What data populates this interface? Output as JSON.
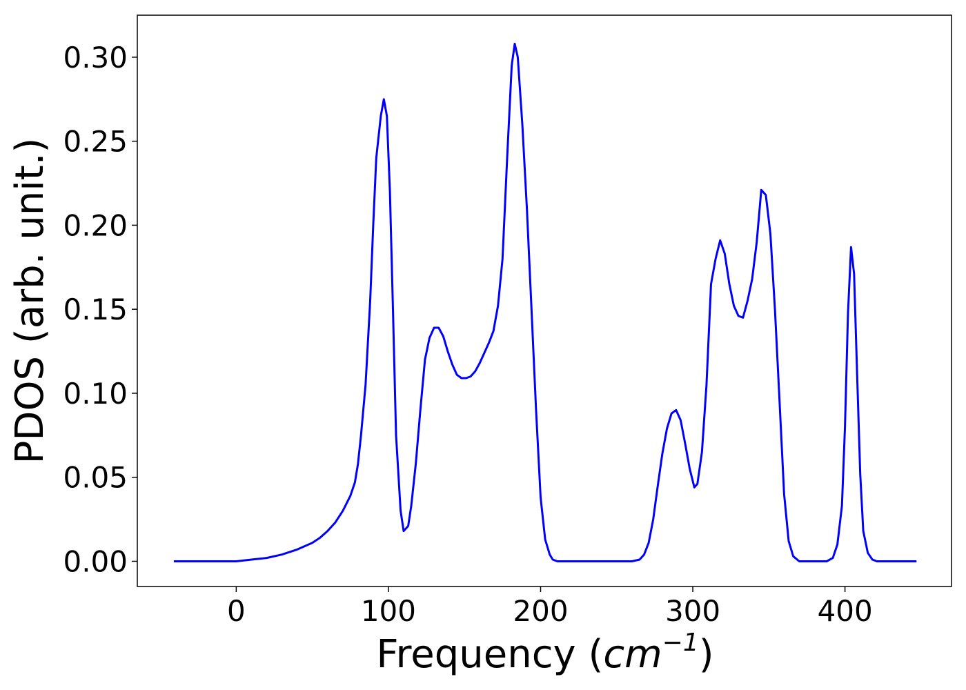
{
  "chart_data": {
    "type": "line",
    "title": "",
    "xlabel_main": "Frequency (",
    "xlabel_unit_base": "cm",
    "xlabel_unit_exp": "−1",
    "xlabel_close": ")",
    "ylabel": "PDOS (arb. unit.)",
    "xlim": [
      -65,
      470
    ],
    "ylim": [
      -0.015,
      0.325
    ],
    "xticks": [
      0,
      100,
      200,
      300,
      400
    ],
    "xtick_labels": [
      "0",
      "100",
      "200",
      "300",
      "400"
    ],
    "yticks": [
      0.0,
      0.05,
      0.1,
      0.15,
      0.2,
      0.25,
      0.3
    ],
    "ytick_labels": [
      "0.00",
      "0.05",
      "0.10",
      "0.15",
      "0.20",
      "0.25",
      "0.30"
    ],
    "grid": false,
    "legend": "none",
    "series": [
      {
        "color": "#0000ff",
        "x": [
          -41,
          -20,
          0,
          10,
          20,
          30,
          40,
          50,
          55,
          60,
          65,
          70,
          75,
          78,
          80,
          82,
          85,
          88,
          90,
          92,
          95,
          97,
          99,
          101,
          103,
          105,
          108,
          110,
          113,
          115,
          118,
          121,
          124,
          127,
          130,
          133,
          136,
          139,
          142,
          145,
          148,
          151,
          154,
          157,
          160,
          163,
          166,
          169,
          172,
          175,
          178,
          181,
          183,
          185,
          188,
          191,
          194,
          197,
          200,
          203,
          206,
          208,
          211,
          215,
          230,
          250,
          260,
          265,
          268,
          271,
          274,
          277,
          280,
          283,
          286,
          289,
          292,
          295,
          298,
          301,
          303,
          306,
          309,
          312,
          315,
          318,
          321,
          324,
          327,
          330,
          333,
          336,
          339,
          342,
          345,
          348,
          351,
          354,
          357,
          360,
          363,
          366,
          370,
          380,
          388,
          392,
          395,
          398,
          400,
          402,
          404,
          406,
          408,
          410,
          412,
          415,
          418,
          421,
          425,
          435,
          447
        ],
        "y": [
          0.0,
          0.0,
          0.0,
          0.001,
          0.002,
          0.004,
          0.007,
          0.011,
          0.014,
          0.018,
          0.023,
          0.03,
          0.039,
          0.047,
          0.058,
          0.075,
          0.105,
          0.155,
          0.2,
          0.24,
          0.265,
          0.275,
          0.265,
          0.22,
          0.15,
          0.075,
          0.03,
          0.018,
          0.021,
          0.033,
          0.058,
          0.09,
          0.12,
          0.133,
          0.139,
          0.139,
          0.134,
          0.125,
          0.117,
          0.111,
          0.109,
          0.109,
          0.11,
          0.113,
          0.118,
          0.124,
          0.13,
          0.137,
          0.152,
          0.18,
          0.24,
          0.295,
          0.308,
          0.3,
          0.26,
          0.21,
          0.15,
          0.09,
          0.038,
          0.013,
          0.004,
          0.001,
          0.0,
          0.0,
          0.0,
          0.0,
          0.0,
          0.001,
          0.004,
          0.011,
          0.025,
          0.045,
          0.064,
          0.079,
          0.088,
          0.09,
          0.084,
          0.07,
          0.055,
          0.044,
          0.046,
          0.065,
          0.105,
          0.165,
          0.18,
          0.191,
          0.183,
          0.165,
          0.152,
          0.146,
          0.145,
          0.155,
          0.168,
          0.19,
          0.221,
          0.218,
          0.195,
          0.15,
          0.095,
          0.04,
          0.012,
          0.003,
          0.0,
          0.0,
          0.0,
          0.002,
          0.01,
          0.033,
          0.08,
          0.148,
          0.187,
          0.171,
          0.11,
          0.052,
          0.018,
          0.005,
          0.001,
          0.0,
          0.0,
          0.0,
          0.0
        ]
      }
    ]
  }
}
